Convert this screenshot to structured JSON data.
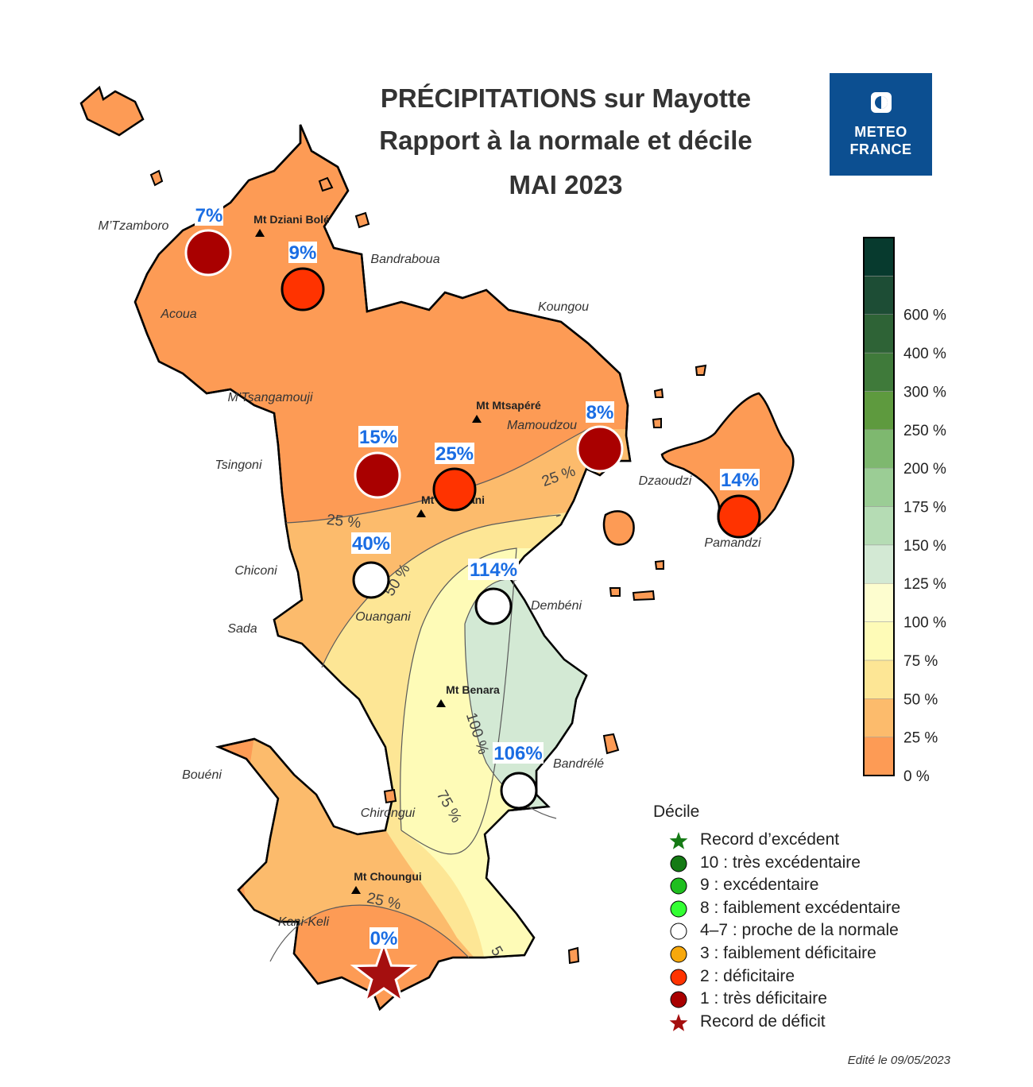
{
  "title": {
    "line1": "PRÉCIPITATIONS sur Mayotte",
    "line2": "Rapport à la normale et décile",
    "line3": "MAI 2023"
  },
  "logo": {
    "line1": "METEO",
    "line2": "FRANCE",
    "bg": "#0c4f91"
  },
  "edited": "Edité le 09/05/2023",
  "colors": {
    "z0_25": "#fd9b55",
    "z25_50": "#fcbb6c",
    "z50_75": "#fde695",
    "z75_100": "#fefbb7",
    "z100_125": "#d3e9d4",
    "label": "#1a6de3",
    "decile1": "#a90000",
    "decile2": "#ff3300",
    "record_deficit": "#a50f0f"
  },
  "map": {
    "places": [
      {
        "name": "M’Tzamboro"
      },
      {
        "name": "Acoua"
      },
      {
        "name": "Bandraboua"
      },
      {
        "name": "Koungou"
      },
      {
        "name": "M’Tsangamouji"
      },
      {
        "name": "Mamoudzou"
      },
      {
        "name": "Tsingoni"
      },
      {
        "name": "Dzaoudzi"
      },
      {
        "name": "Pamandzi"
      },
      {
        "name": "Chiconi"
      },
      {
        "name": "Sada"
      },
      {
        "name": "Ouangani"
      },
      {
        "name": "Dembéni"
      },
      {
        "name": "Bandrélé"
      },
      {
        "name": "Bouéni"
      },
      {
        "name": "Chirongui"
      },
      {
        "name": "Kani-Keli"
      }
    ],
    "peaks": [
      {
        "name": "Mt Dziani Bolé"
      },
      {
        "name": "Mt Mtsapéré"
      },
      {
        "name": "Mt Combani"
      },
      {
        "name": "Mt Benara"
      },
      {
        "name": "Mt Choungui"
      }
    ],
    "contours": [
      {
        "label": "25 %"
      },
      {
        "label": "25 %"
      },
      {
        "label": "50 %"
      },
      {
        "label": "100 %"
      },
      {
        "label": "75 %"
      },
      {
        "label": "25 %"
      },
      {
        "label": "5"
      }
    ],
    "stations": [
      {
        "label": "7%",
        "ratio_pct": 7,
        "decile": 1
      },
      {
        "label": "9%",
        "ratio_pct": 9,
        "decile": 2
      },
      {
        "label": "15%",
        "ratio_pct": 15,
        "decile": 1
      },
      {
        "label": "25%",
        "ratio_pct": 25,
        "decile": 2
      },
      {
        "label": "8%",
        "ratio_pct": 8,
        "decile": 1
      },
      {
        "label": "14%",
        "ratio_pct": 14,
        "decile": 2
      },
      {
        "label": "40%",
        "ratio_pct": 40,
        "decile": "4-7"
      },
      {
        "label": "114%",
        "ratio_pct": 114,
        "decile": "4-7"
      },
      {
        "label": "106%",
        "ratio_pct": 106,
        "decile": "4-7"
      },
      {
        "label": "0%",
        "ratio_pct": 0,
        "decile": "record-deficit"
      }
    ]
  },
  "colorbar": {
    "ticks": [
      "0 %",
      "25 %",
      "50 %",
      "75 %",
      "100 %",
      "125 %",
      "150 %",
      "175 %",
      "200 %",
      "250 %",
      "300 %",
      "400 %",
      "600 %"
    ],
    "colors": [
      "#fd9b55",
      "#fcbb6c",
      "#fde695",
      "#fefbb7",
      "#fdfdcf",
      "#d3e9d4",
      "#b5dcb4",
      "#9bcd95",
      "#7eb86f",
      "#5e9a3e",
      "#3f7a3a",
      "#2e6336",
      "#1d4d35",
      "#073a2e"
    ]
  },
  "decile_legend": {
    "title": "Décile",
    "items": [
      {
        "label": "Record d’excédent",
        "shape": "star",
        "color": "#157a15"
      },
      {
        "label": "10 : très excédentaire",
        "shape": "circle",
        "color": "#147a14"
      },
      {
        "label": "9 : excédentaire",
        "shape": "circle",
        "color": "#1fbf1f"
      },
      {
        "label": "8 : faiblement excédentaire",
        "shape": "circle",
        "color": "#33ff33"
      },
      {
        "label": "4–7 : proche de la normale",
        "shape": "circle",
        "color": "#ffffff"
      },
      {
        "label": "3 : faiblement déficitaire",
        "shape": "circle",
        "color": "#f7a80c"
      },
      {
        "label": "2 : déficitaire",
        "shape": "circle",
        "color": "#ff3300"
      },
      {
        "label": "1 : très déficitaire",
        "shape": "circle",
        "color": "#a90000"
      },
      {
        "label": "Record de déficit",
        "shape": "star",
        "color": "#a50f0f"
      }
    ]
  }
}
